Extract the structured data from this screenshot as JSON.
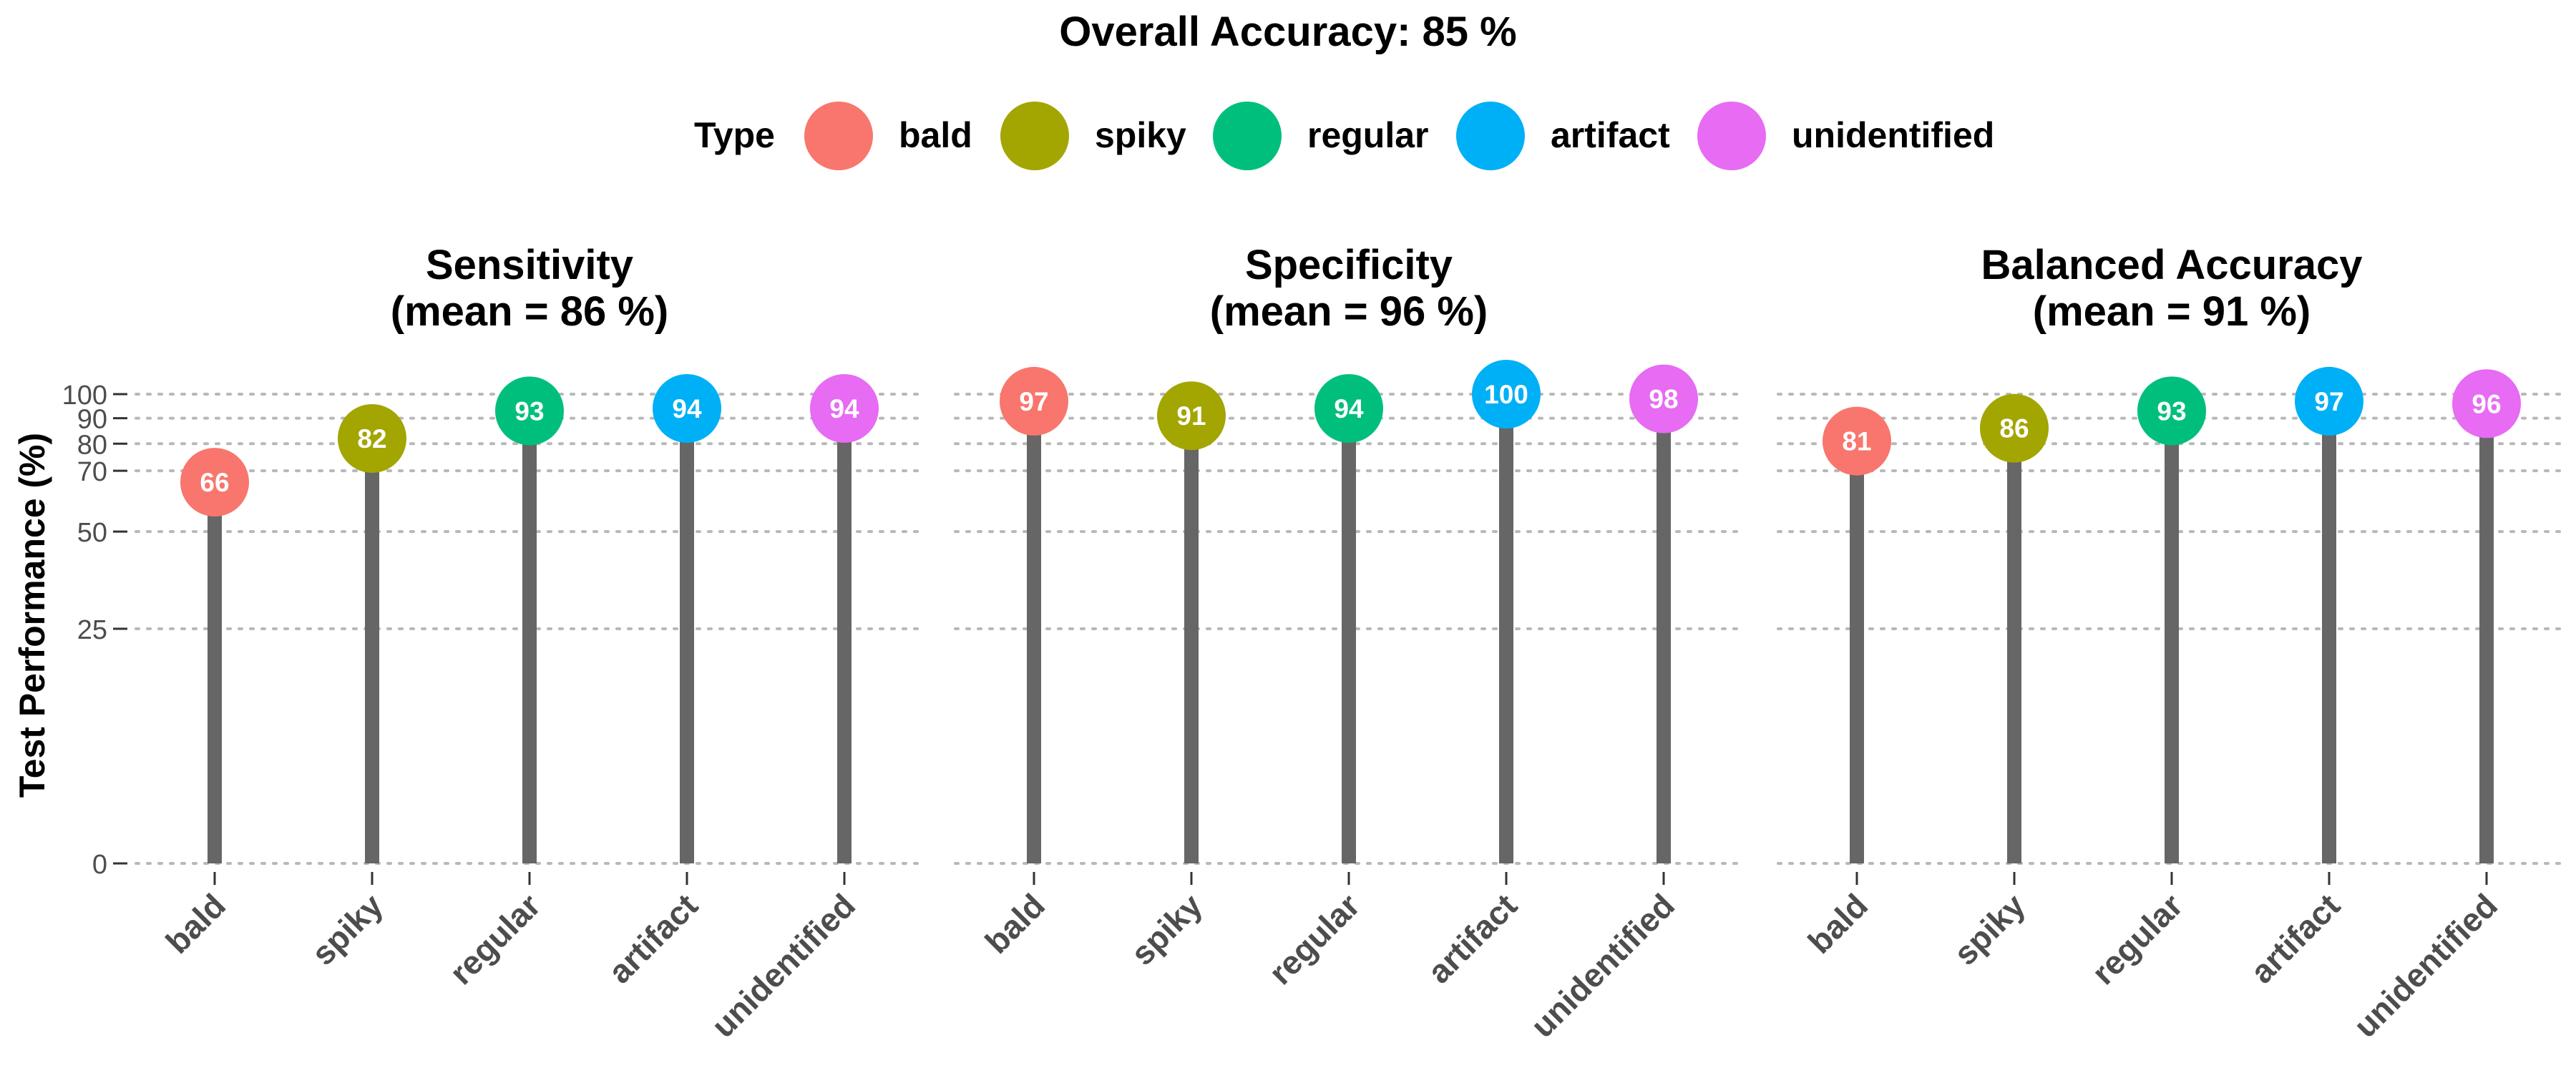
{
  "chart_data": {
    "type": "lollipop",
    "title": "Overall Accuracy: 85 %",
    "legend": {
      "title": "Type",
      "position": "top",
      "entries": [
        {
          "label": "bald",
          "color": "#F8766D"
        },
        {
          "label": "spiky",
          "color": "#A3A500"
        },
        {
          "label": "regular",
          "color": "#00BF7D"
        },
        {
          "label": "artifact",
          "color": "#00B0F6"
        },
        {
          "label": "unidentified",
          "color": "#E76BF3"
        }
      ]
    },
    "ylabel": "Test Performance (%)",
    "y_scale": "sqrt",
    "ylim": [
      0,
      100
    ],
    "yticks": [
      0,
      25,
      50,
      70,
      80,
      90,
      100
    ],
    "grid": "horizontal dotted",
    "categories": [
      "bald",
      "spiky",
      "regular",
      "artifact",
      "unidentified"
    ],
    "panels": [
      {
        "title": "Sensitivity",
        "subtitle": "(mean = 86 %)",
        "values": [
          66,
          82,
          93,
          94,
          94
        ]
      },
      {
        "title": "Specificity",
        "subtitle": "(mean = 96 %)",
        "values": [
          97,
          91,
          94,
          100,
          98
        ]
      },
      {
        "title": "Balanced Accuracy",
        "subtitle": "(mean = 91 %)",
        "values": [
          81,
          86,
          93,
          97,
          96
        ]
      }
    ]
  }
}
